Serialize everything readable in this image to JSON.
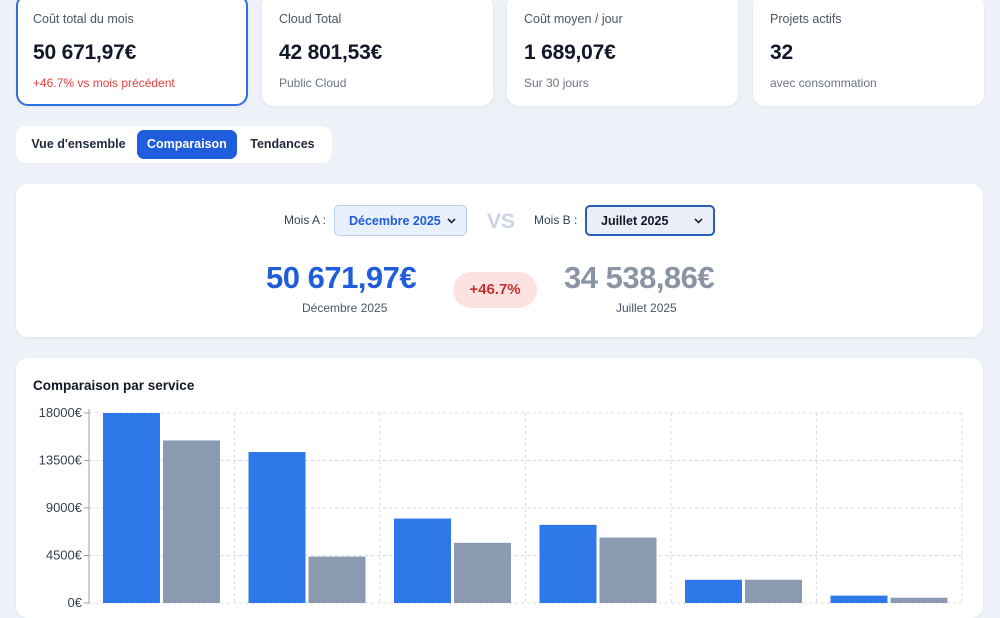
{
  "kpis": [
    {
      "label": "Coût total du mois",
      "value": "50 671,97€",
      "sub": "+46.7% vs mois précédent"
    },
    {
      "label": "Cloud Total",
      "value": "42 801,53€",
      "sub": "Public Cloud"
    },
    {
      "label": "Coût moyen / jour",
      "value": "1 689,07€",
      "sub": "Sur 30 jours"
    },
    {
      "label": "Projets actifs",
      "value": "32",
      "sub": "avec consommation"
    }
  ],
  "tabs": [
    "Vue d'ensemble",
    "Comparaison",
    "Tendances"
  ],
  "active_tab": "Comparaison",
  "comparison": {
    "month_a_label": "Mois A :",
    "month_a_value": "Décembre 2025",
    "vs": "VS",
    "month_b_label": "Mois B :",
    "month_b_value": "Juillet 2025",
    "total_a": "50 671,97€",
    "total_a_caption": "Décembre 2025",
    "delta": "+46.7%",
    "total_b": "34 538,86€",
    "total_b_caption": "Juillet 2025"
  },
  "colors": {
    "accent": "#1f5ddd",
    "series_a": "#2f78ea",
    "series_b": "#8a9bb1",
    "increase": "#e53e3e"
  },
  "chart_data": {
    "type": "bar",
    "title": "Comparaison par service",
    "ylim": [
      0,
      18000
    ],
    "y_ticks": [
      "18000€",
      "13500€",
      "9000€",
      "4500€",
      "0€"
    ],
    "tick_values": [
      18000,
      13500,
      9000,
      4500,
      0
    ],
    "grid": true,
    "categories": [
      "",
      "",
      "",
      "",
      "",
      ""
    ],
    "series": [
      {
        "values": [
          18000,
          14300,
          8000,
          7400,
          2200,
          700
        ]
      },
      {
        "values": [
          15400,
          4400,
          5700,
          6200,
          2200,
          500
        ]
      }
    ]
  }
}
